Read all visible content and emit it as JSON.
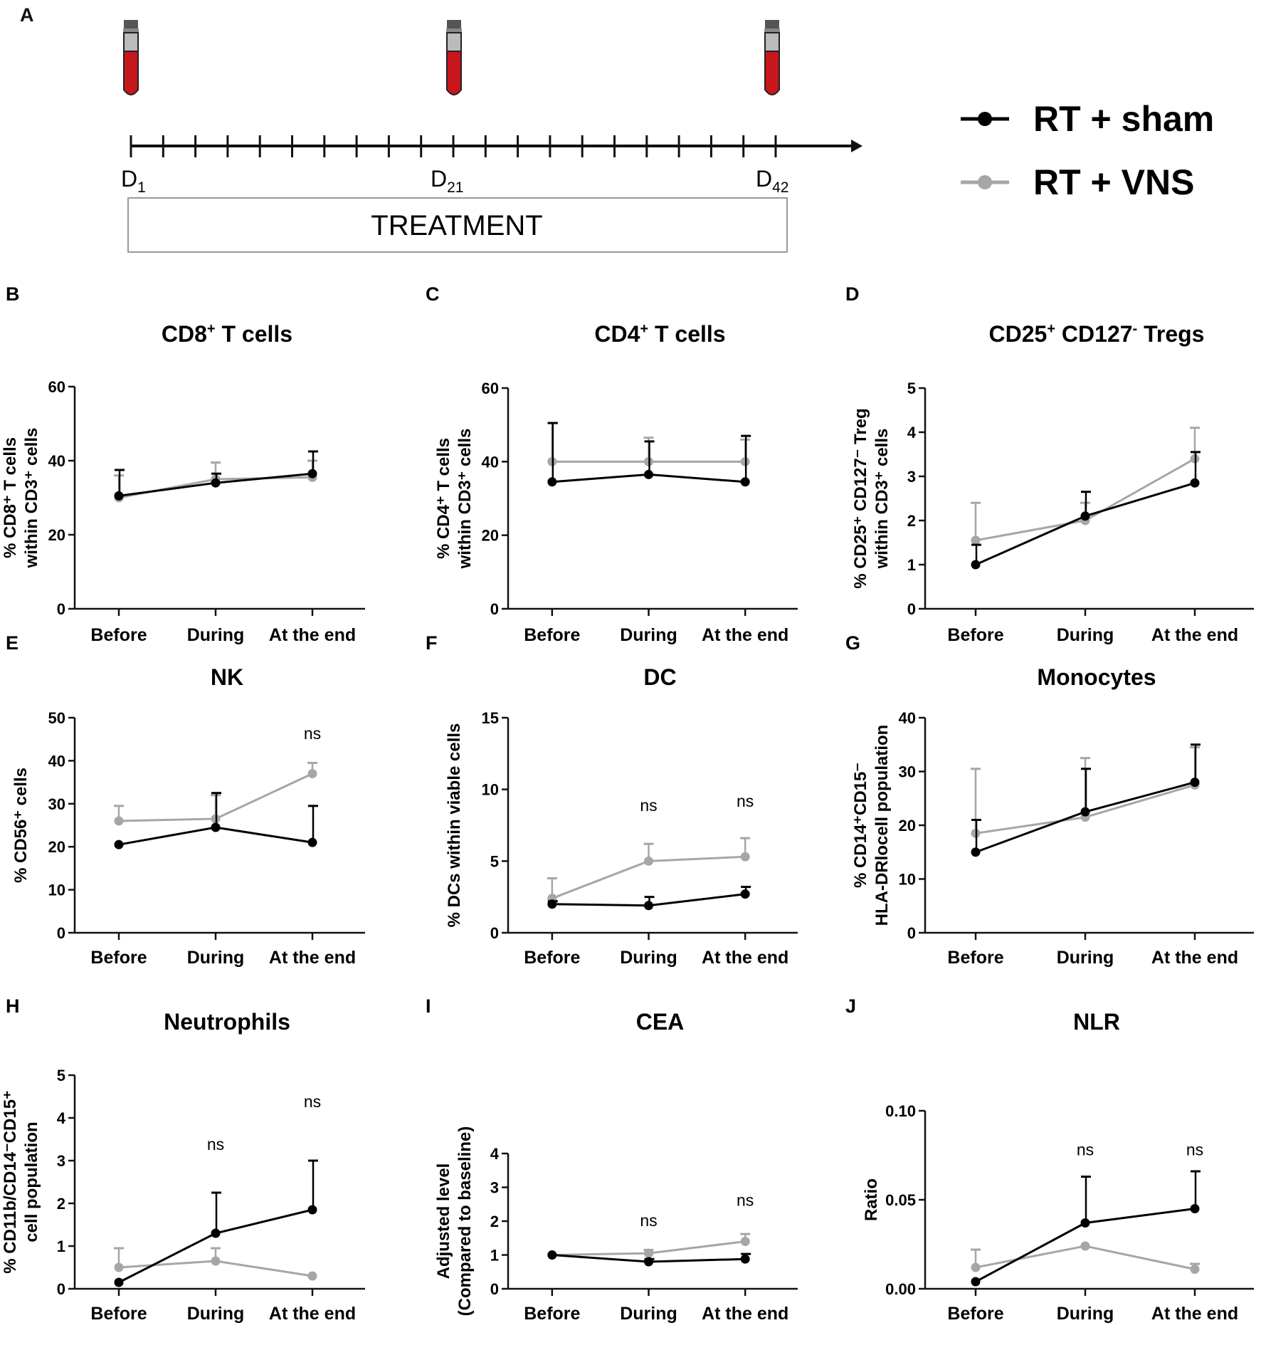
{
  "panel_a": {
    "letter": "A",
    "day_start": "D",
    "day_start_sub": "1",
    "day_mid": "D",
    "day_mid_sub": "21",
    "day_end": "D",
    "day_end_sub": "42",
    "treatment_label": "TREATMENT",
    "tube_icon": "blood-tube-icon",
    "tube_color": "#c8161d"
  },
  "legend": {
    "sham_label": "RT + sham",
    "vns_label": "RT + VNS",
    "sham_color": "#000000",
    "vns_color": "#a6a6a6"
  },
  "chart_data": [
    {
      "letter": "B",
      "type": "line",
      "title": "CD8",
      "title_sup": "+",
      "title_rest": " T cells",
      "ylabel_lines": [
        "% CD8⁺ T cells",
        "within CD3⁺ cells"
      ],
      "categories": [
        "Before",
        "During",
        "At the end"
      ],
      "ylim": [
        0,
        60
      ],
      "yticks": [
        "0",
        "20",
        "40",
        "60"
      ],
      "series": [
        {
          "name": "RT + sham",
          "values": [
            30.5,
            34,
            36.5
          ],
          "errors": [
            7,
            2.5,
            6
          ]
        },
        {
          "name": "RT + VNS",
          "values": [
            30,
            35,
            35.5
          ],
          "errors": [
            6,
            4.5,
            4.5
          ]
        }
      ],
      "annotations": []
    },
    {
      "letter": "C",
      "type": "line",
      "title": "CD4",
      "title_sup": "+",
      "title_rest": " T cells",
      "ylabel_lines": [
        "% CD4⁺ T cells",
        "within CD3⁺ cells"
      ],
      "categories": [
        "Before",
        "During",
        "At the end"
      ],
      "ylim": [
        0,
        60
      ],
      "yticks": [
        "0",
        "20",
        "40",
        "60"
      ],
      "series": [
        {
          "name": "RT + sham",
          "values": [
            34.5,
            36.5,
            34.5
          ],
          "errors": [
            16,
            9,
            12.5
          ]
        },
        {
          "name": "RT + VNS",
          "values": [
            40,
            40,
            40
          ],
          "errors": [
            10.5,
            6.5,
            6
          ]
        }
      ],
      "annotations": []
    },
    {
      "letter": "D",
      "type": "line",
      "title": "CD25",
      "title_sup": "+",
      "title_rest": " CD127",
      "title_sup2": "-",
      "title_rest2": " Tregs",
      "ylabel_lines": [
        "% CD25⁺ CD127⁻ Treg",
        "within CD3⁺ cells"
      ],
      "categories": [
        "Before",
        "During",
        "At the end"
      ],
      "ylim": [
        0,
        5
      ],
      "yticks": [
        "0",
        "1",
        "2",
        "3",
        "4",
        "5"
      ],
      "series": [
        {
          "name": "RT + sham",
          "values": [
            1,
            2.1,
            2.85
          ],
          "errors": [
            0.45,
            0.55,
            0.7
          ]
        },
        {
          "name": "RT + VNS",
          "values": [
            1.55,
            2,
            3.4
          ],
          "errors": [
            0.85,
            0.4,
            0.7
          ]
        }
      ],
      "annotations": []
    },
    {
      "letter": "E",
      "type": "line",
      "title": "NK",
      "ylabel_lines": [
        "% CD56⁺ cells"
      ],
      "categories": [
        "Before",
        "During",
        "At the end"
      ],
      "ylim": [
        0,
        50
      ],
      "yticks": [
        "0",
        "10",
        "20",
        "30",
        "40",
        "50"
      ],
      "series": [
        {
          "name": "RT + sham",
          "values": [
            20.5,
            24.5,
            21
          ],
          "errors": [
            0,
            8,
            8.5
          ]
        },
        {
          "name": "RT + VNS",
          "values": [
            26,
            26.5,
            37
          ],
          "errors": [
            3.5,
            5.5,
            2.5
          ]
        }
      ],
      "annotations": [
        {
          "category": "At the end",
          "text": "ns",
          "y": 45
        }
      ]
    },
    {
      "letter": "F",
      "type": "line",
      "title": "DC",
      "ylabel_lines": [
        "% DCs within viable cells"
      ],
      "categories": [
        "Before",
        "During",
        "At the end"
      ],
      "ylim": [
        0,
        15
      ],
      "yticks": [
        "0",
        "5",
        "10",
        "15"
      ],
      "series": [
        {
          "name": "RT + sham",
          "values": [
            2,
            1.9,
            2.7
          ],
          "errors": [
            0.2,
            0.6,
            0.5
          ]
        },
        {
          "name": "RT + VNS",
          "values": [
            2.4,
            5,
            5.3
          ],
          "errors": [
            1.4,
            1.2,
            1.3
          ]
        }
      ],
      "annotations": [
        {
          "category": "During",
          "text": "ns",
          "y": 8.5
        },
        {
          "category": "At the end",
          "text": "ns",
          "y": 8.8
        }
      ]
    },
    {
      "letter": "G",
      "type": "line",
      "title": "Monocytes",
      "ylabel_lines": [
        "% CD14⁺CD15⁻",
        "HLA-DR^locell population"
      ],
      "categories": [
        "Before",
        "During",
        "At the end"
      ],
      "ylim": [
        0,
        40
      ],
      "yticks": [
        "0",
        "10",
        "20",
        "30",
        "40"
      ],
      "series": [
        {
          "name": "RT + sham",
          "values": [
            15,
            22.5,
            28
          ],
          "errors": [
            6,
            8,
            7
          ]
        },
        {
          "name": "RT + VNS",
          "values": [
            18.5,
            21.5,
            27.5
          ],
          "errors": [
            12,
            11,
            7
          ]
        }
      ],
      "annotations": []
    },
    {
      "letter": "H",
      "type": "line",
      "title": "Neutrophils",
      "ylabel_lines": [
        "% CD11b/CD14⁻CD15⁺",
        "cell population"
      ],
      "categories": [
        "Before",
        "During",
        "At the end"
      ],
      "ylim": [
        0,
        5
      ],
      "yticks": [
        "0",
        "1",
        "2",
        "3",
        "4",
        "5"
      ],
      "series": [
        {
          "name": "RT + sham",
          "values": [
            0.15,
            1.3,
            1.85
          ],
          "errors": [
            0,
            0.95,
            1.15
          ]
        },
        {
          "name": "RT + VNS",
          "values": [
            0.5,
            0.65,
            0.3
          ],
          "errors": [
            0.45,
            0.3,
            0
          ]
        }
      ],
      "annotations": [
        {
          "category": "During",
          "text": "ns",
          "y": 3.25
        },
        {
          "category": "At the end",
          "text": "ns",
          "y": 4.25
        }
      ]
    },
    {
      "letter": "I",
      "type": "line",
      "title": "CEA",
      "ylabel_lines": [
        "Adjusted level",
        "(Compared to baseline)"
      ],
      "categories": [
        "Before",
        "During",
        "At the end"
      ],
      "ylim": [
        0,
        4
      ],
      "yticks": [
        "0",
        "1",
        "2",
        "3",
        "4"
      ],
      "series": [
        {
          "name": "RT + sham",
          "values": [
            1,
            0.8,
            0.88
          ],
          "errors": [
            0,
            0.08,
            0.15
          ]
        },
        {
          "name": "RT + VNS",
          "values": [
            1,
            1.05,
            1.4
          ],
          "errors": [
            0,
            0.1,
            0.22
          ]
        }
      ],
      "annotations": [
        {
          "category": "During",
          "text": "ns",
          "y": 1.85
        },
        {
          "category": "At the end",
          "text": "ns",
          "y": 2.45
        }
      ]
    },
    {
      "letter": "J",
      "type": "line",
      "title": "NLR",
      "ylabel_lines": [
        "Ratio"
      ],
      "categories": [
        "Before",
        "During",
        "At the end"
      ],
      "ylim": [
        0,
        0.1
      ],
      "yticks": [
        "0.00",
        "0.05",
        "0.10"
      ],
      "series": [
        {
          "name": "RT + sham",
          "values": [
            0.004,
            0.037,
            0.045
          ],
          "errors": [
            0,
            0.026,
            0.021
          ]
        },
        {
          "name": "RT + VNS",
          "values": [
            0.012,
            0.024,
            0.011
          ],
          "errors": [
            0.01,
            0,
            0.003
          ]
        }
      ],
      "annotations": [
        {
          "category": "During",
          "text": "ns",
          "y": 0.075
        },
        {
          "category": "At the end",
          "text": "ns",
          "y": 0.075
        }
      ]
    }
  ]
}
